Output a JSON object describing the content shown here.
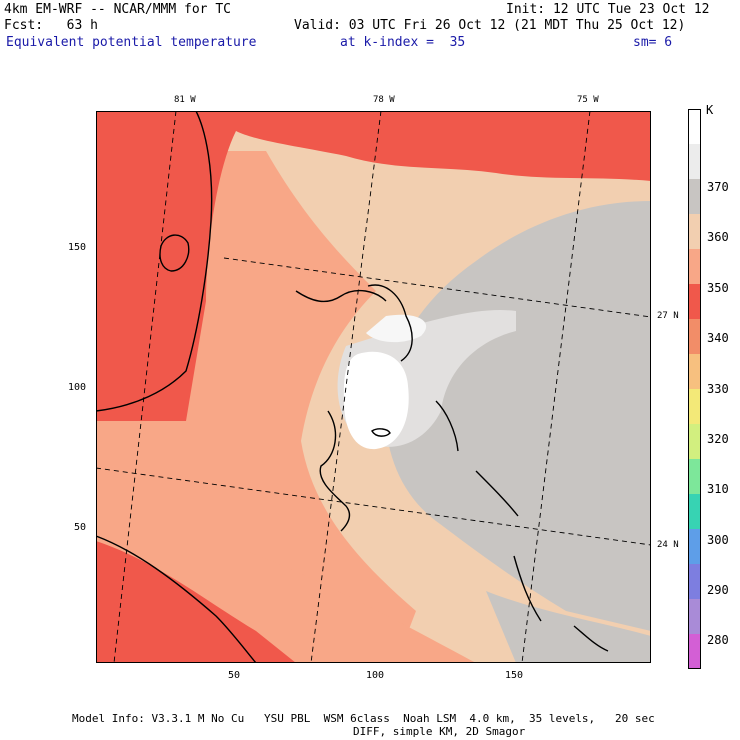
{
  "header": {
    "model": "4km EM-WRF -- NCAR/MMM for TC",
    "init": "Init: 12 UTC Tue 23 Oct 12",
    "fcst": "Fcst:   63 h",
    "valid": "Valid: 03 UTC Fri 26 Oct 12 (21 MDT Thu 25 Oct 12)",
    "field": "Equivalent potential temperature",
    "level": "at k-index =  35",
    "smoothing": "sm= 6"
  },
  "map": {
    "top_lon_labels": [
      "81 W",
      "78 W",
      "75 W"
    ],
    "right_lat_labels": [
      "27 N",
      "24 N"
    ],
    "left_y_ticks": [
      "150",
      "100",
      "50"
    ],
    "bottom_x_ticks": [
      "50",
      "100",
      "150"
    ]
  },
  "colorbar": {
    "unit": "K",
    "labels": [
      "370",
      "360",
      "350",
      "340",
      "330",
      "320",
      "310",
      "300",
      "290",
      "280"
    ],
    "colors": [
      "#ffffff",
      "#ececec",
      "#c8c5c2",
      "#f2cfb0",
      "#f8a787",
      "#f0584b",
      "#f28d68",
      "#f7c07f",
      "#f3e978",
      "#d2ef7f",
      "#7de79a",
      "#37d3b3",
      "#5e9ee8",
      "#7d7ee0",
      "#a98bd7",
      "#d35fd5"
    ]
  },
  "footer": {
    "line1": "Model Info: V3.3.1 M No Cu   YSU PBL  WSM 6class  Noah LSM  4.0 km,  35 levels,   20 sec",
    "line2": "DIFF, simple KM, 2D Smagor"
  }
}
